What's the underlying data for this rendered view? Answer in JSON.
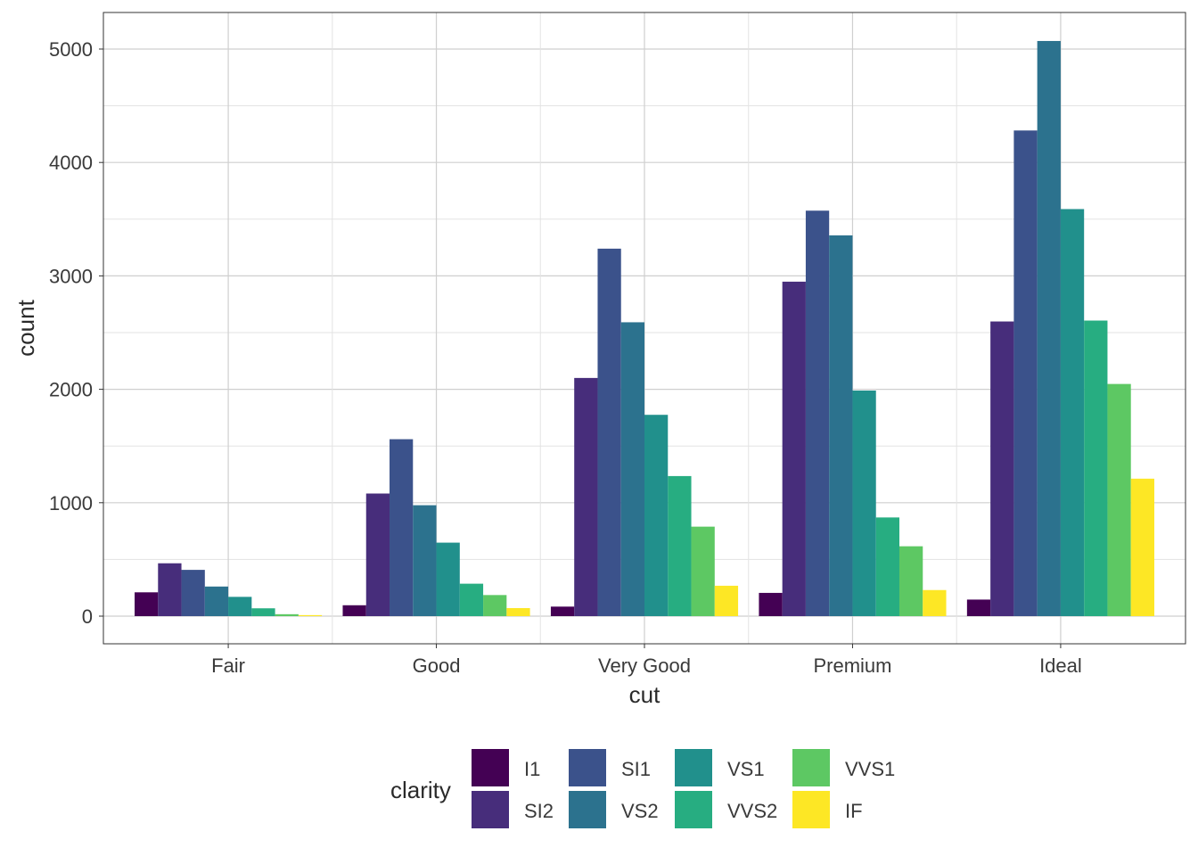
{
  "chart_data": {
    "type": "bar",
    "title": "",
    "xlabel": "cut",
    "ylabel": "count",
    "categories": [
      "Fair",
      "Good",
      "Very Good",
      "Premium",
      "Ideal"
    ],
    "ylim": [
      0,
      5300
    ],
    "yticks": [
      0,
      1000,
      2000,
      3000,
      4000,
      5000
    ],
    "ytick_labels": [
      "0",
      "1000",
      "2000",
      "3000",
      "4000",
      "5000"
    ],
    "grid": true,
    "legend": {
      "title": "clarity",
      "position": "bottom"
    },
    "series": [
      {
        "name": "I1",
        "color": "#440154",
        "values": [
          210,
          96,
          84,
          205,
          146
        ]
      },
      {
        "name": "SI2",
        "color": "#472D7B",
        "values": [
          466,
          1081,
          2100,
          2949,
          2598
        ]
      },
      {
        "name": "SI1",
        "color": "#3B528B",
        "values": [
          408,
          1560,
          3240,
          3575,
          4282
        ]
      },
      {
        "name": "VS2",
        "color": "#2C728E",
        "values": [
          261,
          978,
          2591,
          3357,
          5071
        ]
      },
      {
        "name": "VS1",
        "color": "#21908C",
        "values": [
          170,
          648,
          1775,
          1989,
          3589
        ]
      },
      {
        "name": "VVS2",
        "color": "#27AD81",
        "values": [
          69,
          286,
          1235,
          870,
          2606
        ]
      },
      {
        "name": "VVS1",
        "color": "#5DC863",
        "values": [
          17,
          186,
          789,
          616,
          2047
        ]
      },
      {
        "name": "IF",
        "color": "#FDE725",
        "values": [
          9,
          71,
          268,
          230,
          1212
        ]
      }
    ]
  }
}
